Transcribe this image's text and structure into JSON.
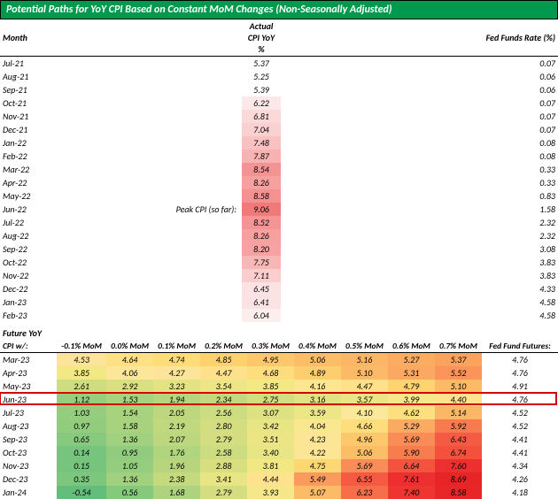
{
  "title": "Potential Paths for YoY CPI Based on Constant MoM Changes (Non-Seasonally Adjusted)",
  "header": {
    "month": "Month",
    "actual": "Actual CPI YoY %",
    "ffr": "Fed Funds Rate (%)"
  },
  "peak_label": "Peak CPI (so far):",
  "actual_rows": [
    {
      "m": "Jul-21",
      "cpi": "5.37",
      "color": "#ffffff",
      "ffr": "0.07"
    },
    {
      "m": "Aug-21",
      "cpi": "5.25",
      "color": "#ffffff",
      "ffr": "0.06"
    },
    {
      "m": "Sep-21",
      "cpi": "5.39",
      "color": "#ffffff",
      "ffr": "0.06"
    },
    {
      "m": "Oct-21",
      "cpi": "6.22",
      "color": "#fce8e8",
      "ffr": "0.07"
    },
    {
      "m": "Nov-21",
      "cpi": "6.81",
      "color": "#fbd9d9",
      "ffr": "0.07"
    },
    {
      "m": "Dec-21",
      "cpi": "7.04",
      "color": "#fad1d1",
      "ffr": "0.07"
    },
    {
      "m": "Jan-22",
      "cpi": "7.48",
      "color": "#f9c1c1",
      "ffr": "0.08"
    },
    {
      "m": "Feb-22",
      "cpi": "7.87",
      "color": "#f7b2b2",
      "ffr": "0.08"
    },
    {
      "m": "Mar-22",
      "cpi": "8.54",
      "color": "#f49393",
      "ffr": "0.33"
    },
    {
      "m": "Apr-22",
      "cpi": "8.26",
      "color": "#f6a0a0",
      "ffr": "0.33"
    },
    {
      "m": "May-22",
      "cpi": "8.58",
      "color": "#f49191",
      "ffr": "0.83"
    },
    {
      "m": "Jun-22",
      "cpi": "9.06",
      "color": "#f07a7a",
      "ffr": "1.58",
      "peak": true
    },
    {
      "m": "Jul-22",
      "cpi": "8.52",
      "color": "#f49494",
      "ffr": "2.32"
    },
    {
      "m": "Aug-22",
      "cpi": "8.26",
      "color": "#f6a0a0",
      "ffr": "2.32"
    },
    {
      "m": "Sep-22",
      "cpi": "8.20",
      "color": "#f6a2a2",
      "ffr": "3.08"
    },
    {
      "m": "Oct-22",
      "cpi": "7.75",
      "color": "#f8b7b7",
      "ffr": "3.83"
    },
    {
      "m": "Nov-22",
      "cpi": "7.11",
      "color": "#facece",
      "ffr": "3.83"
    },
    {
      "m": "Dec-22",
      "cpi": "6.45",
      "color": "#fce2e2",
      "ffr": "4.33"
    },
    {
      "m": "Jan-23",
      "cpi": "6.41",
      "color": "#fce3e3",
      "ffr": "4.58"
    },
    {
      "m": "Feb-23",
      "cpi": "6.04",
      "color": "#fdeeee",
      "ffr": "4.58"
    }
  ],
  "future_label": "Future YoY",
  "cpi_w_label": "CPI w/:",
  "scenario_cols": [
    "-0.1% MoM",
    "0.0% MoM",
    "0.1% MoM",
    "0.2% MoM",
    "0.3% MoM",
    "0.4% MoM",
    "0.5% MoM",
    "0.6% MoM",
    "0.7% MoM"
  ],
  "fff_label": "Fed Fund Futures:",
  "proj_rows": [
    {
      "m": "Mar-23",
      "v": [
        "4.53",
        "4.64",
        "4.74",
        "4.85",
        "4.95",
        "5.06",
        "5.16",
        "5.27",
        "5.37"
      ],
      "c": [
        "#fde49b",
        "#fee085",
        "#fedd78",
        "#fdd26e",
        "#fdc86b",
        "#fcbd67",
        "#fcb665",
        "#fbac61",
        "#fba25d"
      ],
      "fff": "4.76",
      "hl": false
    },
    {
      "m": "Apr-23",
      "v": [
        "3.85",
        "4.06",
        "4.27",
        "4.47",
        "4.68",
        "4.89",
        "5.10",
        "5.31",
        "5.52"
      ],
      "c": [
        "#f2e884",
        "#fbe797",
        "#fde49b",
        "#fee18a",
        "#fede7c",
        "#fdce6d",
        "#fcba66",
        "#fba962",
        "#fb945a"
      ],
      "fff": "4.76",
      "hl": false
    },
    {
      "m": "May-23",
      "v": [
        "2.61",
        "2.92",
        "3.23",
        "3.54",
        "3.85",
        "4.16",
        "4.47",
        "4.79",
        "5.10"
      ],
      "c": [
        "#cedd80",
        "#d9e081",
        "#e3e384",
        "#ece686",
        "#f2e884",
        "#fce692",
        "#fee18a",
        "#fdd46f",
        "#fcba66"
      ],
      "fff": "4.91",
      "hl": false
    },
    {
      "m": "Jun-23",
      "v": [
        "1.12",
        "1.53",
        "1.94",
        "2.34",
        "2.75",
        "3.16",
        "3.57",
        "3.99",
        "4.40"
      ],
      "c": [
        "#97ce7e",
        "#a7d27e",
        "#b7d57e",
        "#c4d97f",
        "#d3de80",
        "#e1e283",
        "#ebe585",
        "#f6e88a",
        "#fee28e"
      ],
      "fff": "4.76",
      "hl": true
    },
    {
      "m": "Jul-23",
      "v": [
        "1.03",
        "1.54",
        "2.05",
        "2.56",
        "3.07",
        "3.59",
        "4.10",
        "4.62",
        "5.14"
      ],
      "c": [
        "#94cd7e",
        "#a7d27e",
        "#bcd77e",
        "#ccdc80",
        "#dde182",
        "#ece686",
        "#fbe89a",
        "#fedf80",
        "#fcb766"
      ],
      "fff": "4.52",
      "hl": false
    },
    {
      "m": "Aug-23",
      "v": [
        "0.97",
        "1.58",
        "2.19",
        "2.80",
        "3.42",
        "4.04",
        "4.66",
        "5.29",
        "5.92"
      ],
      "c": [
        "#92cd7e",
        "#a8d27e",
        "#c0d87e",
        "#d4de81",
        "#e8e584",
        "#f9e890",
        "#fede7c",
        "#fbab61",
        "#f77b4e"
      ],
      "fff": "4.52",
      "hl": false
    },
    {
      "m": "Sep-23",
      "v": [
        "0.65",
        "1.36",
        "2.07",
        "2.79",
        "3.51",
        "4.23",
        "4.96",
        "5.69",
        "6.43"
      ],
      "c": [
        "#88ca7d",
        "#a1d07e",
        "#bdd77e",
        "#d4de81",
        "#ebe585",
        "#fde596",
        "#fdc86b",
        "#fa8d57",
        "#f55a42"
      ],
      "fff": "4.41",
      "hl": false
    },
    {
      "m": "Oct-23",
      "v": [
        "0.14",
        "0.95",
        "1.76",
        "2.58",
        "3.40",
        "4.22",
        "5.06",
        "5.90",
        "6.74"
      ],
      "c": [
        "#76c47d",
        "#91cc7e",
        "#b1d47e",
        "#ccdc80",
        "#e8e584",
        "#fde596",
        "#fcbd67",
        "#f77c4e",
        "#f4513d"
      ],
      "fff": "4.41",
      "hl": false
    },
    {
      "m": "Nov-23",
      "v": [
        "0.15",
        "1.05",
        "1.96",
        "2.88",
        "3.81",
        "4.75",
        "5.69",
        "6.64",
        "7.60"
      ],
      "c": [
        "#76c47d",
        "#95cd7e",
        "#b8d57e",
        "#d7df81",
        "#f1e884",
        "#fdd772",
        "#fa8d57",
        "#f4543f",
        "#ed2f2f"
      ],
      "fff": "4.34",
      "hl": false
    },
    {
      "m": "Dec-23",
      "v": [
        "0.35",
        "1.36",
        "2.38",
        "3.41",
        "4.44",
        "5.49",
        "6.55",
        "7.61",
        "8.69"
      ],
      "c": [
        "#7cc67d",
        "#a1d07e",
        "#c5d97f",
        "#e8e584",
        "#fee28e",
        "#fa9b5d",
        "#f55b43",
        "#ed302f",
        "#e82526"
      ],
      "fff": "4.26",
      "hl": false
    },
    {
      "m": "Jan-24",
      "v": [
        "-0.54",
        "0.56",
        "1.68",
        "2.79",
        "3.93",
        "5.07",
        "6.23",
        "7.40",
        "8.58"
      ],
      "c": [
        "#63be7b",
        "#85c97d",
        "#aed37e",
        "#d4de81",
        "#f6e88a",
        "#fcbc67",
        "#f66f4a",
        "#ee3531",
        "#e92627"
      ],
      "fff": "4.18",
      "hl": false
    }
  ]
}
